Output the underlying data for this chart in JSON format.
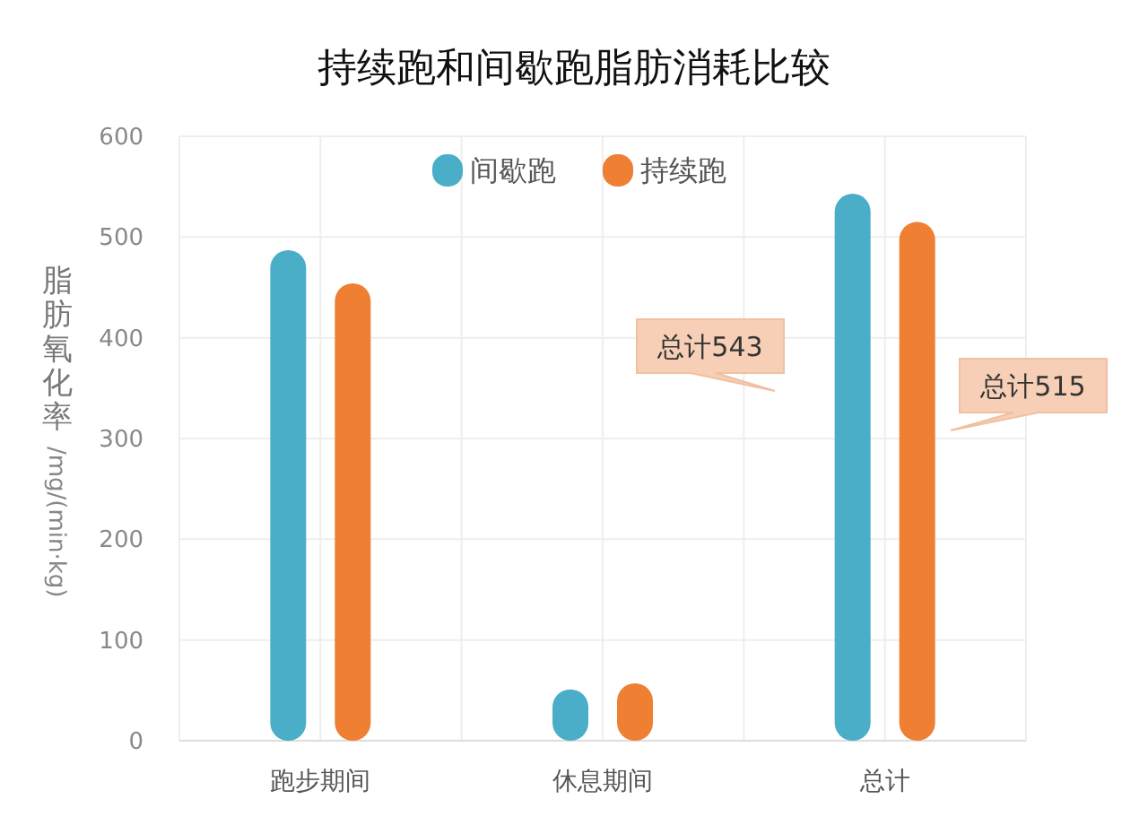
{
  "chart_data": {
    "type": "bar",
    "title": "持续跑和间歇跑脂肪消耗比较",
    "ylabel": "脂肪氧化率 /mg/(min·kg)",
    "categories": [
      "跑步期间",
      "休息期间",
      "总计"
    ],
    "series": [
      {
        "name": "间歇跑",
        "color": "#4aaec8",
        "values": [
          487,
          51,
          543
        ]
      },
      {
        "name": "持续跑",
        "color": "#ee7f33",
        "values": [
          454,
          57,
          515
        ]
      }
    ],
    "ylim": [
      0,
      600
    ],
    "yticks": [
      0,
      100,
      200,
      300,
      400,
      500,
      600
    ],
    "grid": true,
    "legend": "top",
    "annotations": [
      "总计543",
      "总计515"
    ]
  }
}
